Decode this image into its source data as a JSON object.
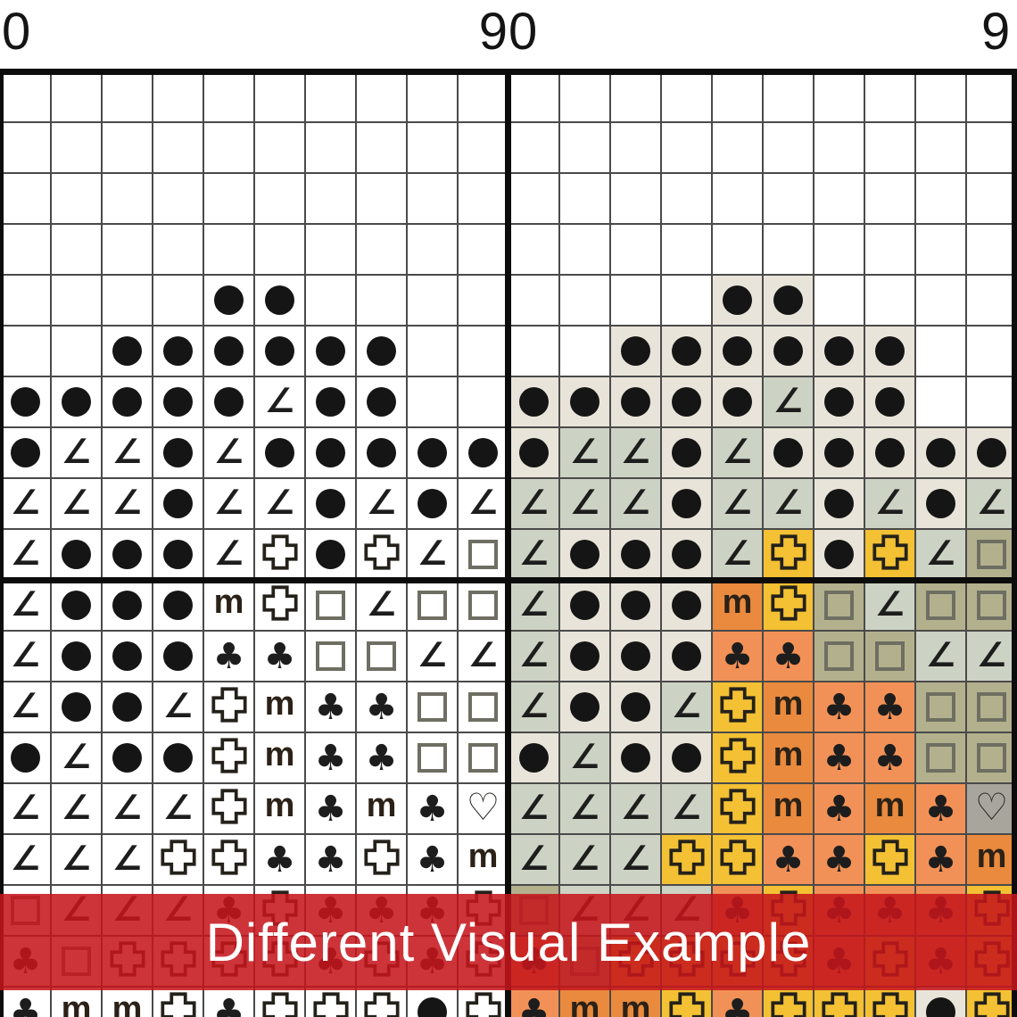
{
  "header": {
    "tick_labels": [
      {
        "text": "0"
      },
      {
        "text": "90"
      },
      {
        "text": "9"
      }
    ],
    "label_color": "#141414"
  },
  "banner": {
    "text": "Different Visual Example",
    "background": "#c5161b",
    "text_color": "#ffffff"
  },
  "grid": {
    "cell_size": 57,
    "columns": 20,
    "rows": 19,
    "columns_per_half": 10,
    "gridline_color": "#4a4a4a",
    "bold_line_color": "#0c0c0c",
    "left_half_cell_background": "#ffffff",
    "ink_color": "#1d1d1d",
    "symbol_glyphs": {
      "dot": "●",
      "angle": "∠",
      "m": "m",
      "club": "♣",
      "heart": "♡",
      "square": "□",
      "cross": "✚"
    },
    "cell_colors": {
      "dot": "#e9e4d9",
      "angle": "#cdd3c4",
      "cross": "#f3c133",
      "m": "#e98a3e",
      "club": "#f29157",
      "square": "#b3b18d",
      "heart": "#a8a59d",
      "empty": "#ffffff"
    },
    "pattern_rows": [
      [
        "",
        "",
        "",
        "",
        "",
        "",
        "",
        "",
        "",
        ""
      ],
      [
        "",
        "",
        "",
        "",
        "",
        "",
        "",
        "",
        "",
        ""
      ],
      [
        "",
        "",
        "",
        "",
        "",
        "",
        "",
        "",
        "",
        ""
      ],
      [
        "",
        "",
        "",
        "",
        "",
        "",
        "",
        "",
        "",
        ""
      ],
      [
        "",
        "",
        "",
        "",
        "dot",
        "dot",
        "",
        "",
        "",
        ""
      ],
      [
        "",
        "",
        "dot",
        "dot",
        "dot",
        "dot",
        "dot",
        "dot",
        "",
        ""
      ],
      [
        "dot",
        "dot",
        "dot",
        "dot",
        "dot",
        "angle",
        "dot",
        "dot",
        "",
        ""
      ],
      [
        "dot",
        "angle",
        "angle",
        "dot",
        "angle",
        "dot",
        "dot",
        "dot",
        "dot",
        "dot"
      ],
      [
        "angle",
        "angle",
        "angle",
        "dot",
        "angle",
        "angle",
        "dot",
        "angle",
        "dot",
        "angle"
      ],
      [
        "angle",
        "dot",
        "dot",
        "dot",
        "angle",
        "cross",
        "dot",
        "cross",
        "angle",
        "square"
      ],
      [
        "angle",
        "dot",
        "dot",
        "dot",
        "m",
        "cross",
        "square",
        "angle",
        "square",
        "square"
      ],
      [
        "angle",
        "dot",
        "dot",
        "dot",
        "club",
        "club",
        "square",
        "square",
        "angle",
        "angle"
      ],
      [
        "angle",
        "dot",
        "dot",
        "angle",
        "cross",
        "m",
        "club",
        "club",
        "square",
        "square"
      ],
      [
        "dot",
        "angle",
        "dot",
        "dot",
        "cross",
        "m",
        "club",
        "club",
        "square",
        "square"
      ],
      [
        "angle",
        "angle",
        "angle",
        "angle",
        "cross",
        "m",
        "club",
        "m",
        "club",
        "heart"
      ],
      [
        "angle",
        "angle",
        "angle",
        "cross",
        "cross",
        "club",
        "club",
        "cross",
        "club",
        "m"
      ],
      [
        "square",
        "angle",
        "angle",
        "angle",
        "club",
        "cross",
        "club",
        "club",
        "club",
        "cross"
      ],
      [
        "club",
        "square",
        "cross",
        "cross",
        "cross",
        "cross",
        "club",
        "cross",
        "club",
        "cross"
      ],
      [
        "club",
        "m",
        "m",
        "cross",
        "club",
        "cross",
        "cross",
        "cross",
        "dot",
        "cross"
      ]
    ]
  }
}
